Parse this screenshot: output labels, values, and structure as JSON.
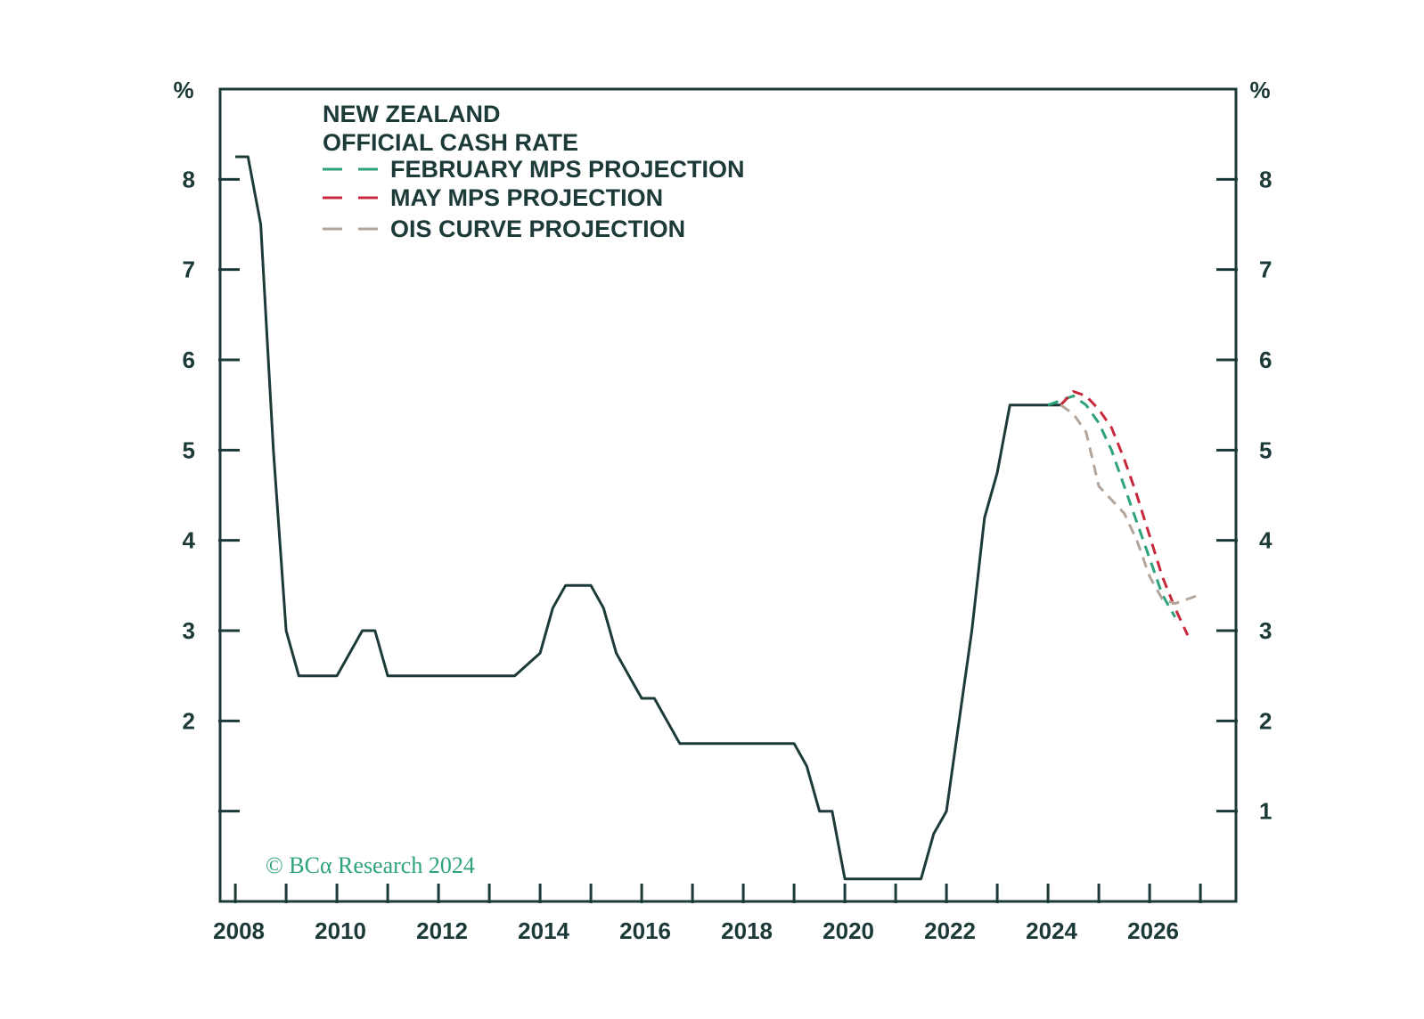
{
  "chart_data": {
    "type": "line",
    "title_lines": [
      "NEW ZEALAND",
      "OFFICIAL CASH RATE"
    ],
    "left_unit": "%",
    "right_unit": "%",
    "ylim": [
      0.0,
      9.0
    ],
    "xlim": [
      2007.7,
      2027.7
    ],
    "y_ticks": [
      1,
      2,
      3,
      4,
      5,
      6,
      7,
      8
    ],
    "y_tick_labels_left": [
      "2",
      "3",
      "4",
      "5",
      "6",
      "7",
      "8"
    ],
    "y_tick_labels_left_values": [
      2,
      3,
      4,
      5,
      6,
      7,
      8
    ],
    "y_tick_labels_right": [
      "1",
      "2",
      "3",
      "4",
      "5",
      "6",
      "7",
      "8"
    ],
    "y_tick_labels_right_values": [
      1,
      2,
      3,
      4,
      5,
      6,
      7,
      8
    ],
    "x_ticks": [
      2008,
      2009,
      2010,
      2011,
      2012,
      2013,
      2014,
      2015,
      2016,
      2017,
      2018,
      2019,
      2020,
      2021,
      2022,
      2023,
      2024,
      2025,
      2026,
      2027
    ],
    "x_tick_labels": [
      "2008",
      "2010",
      "2012",
      "2014",
      "2016",
      "2018",
      "2020",
      "2022",
      "2024",
      "2026"
    ],
    "x_tick_label_values": [
      2008,
      2010,
      2012,
      2014,
      2016,
      2018,
      2020,
      2022,
      2024,
      2026
    ],
    "series": [
      {
        "name": "OFFICIAL CASH RATE",
        "color": "#1c3a38",
        "dash": "solid",
        "points": [
          [
            2008.0,
            8.25
          ],
          [
            2008.25,
            8.25
          ],
          [
            2008.5,
            7.5
          ],
          [
            2008.75,
            5.0
          ],
          [
            2009.0,
            3.0
          ],
          [
            2009.25,
            2.5
          ],
          [
            2010.0,
            2.5
          ],
          [
            2010.5,
            3.0
          ],
          [
            2010.75,
            3.0
          ],
          [
            2011.0,
            2.5
          ],
          [
            2013.5,
            2.5
          ],
          [
            2014.0,
            2.75
          ],
          [
            2014.25,
            3.25
          ],
          [
            2014.5,
            3.5
          ],
          [
            2015.0,
            3.5
          ],
          [
            2015.25,
            3.25
          ],
          [
            2015.5,
            2.75
          ],
          [
            2015.75,
            2.5
          ],
          [
            2016.0,
            2.25
          ],
          [
            2016.25,
            2.25
          ],
          [
            2016.75,
            1.75
          ],
          [
            2018.0,
            1.75
          ],
          [
            2019.0,
            1.75
          ],
          [
            2019.25,
            1.5
          ],
          [
            2019.5,
            1.0
          ],
          [
            2019.75,
            1.0
          ],
          [
            2020.0,
            0.25
          ],
          [
            2021.5,
            0.25
          ],
          [
            2021.75,
            0.75
          ],
          [
            2022.0,
            1.0
          ],
          [
            2022.25,
            2.0
          ],
          [
            2022.5,
            3.0
          ],
          [
            2022.75,
            4.25
          ],
          [
            2023.0,
            4.75
          ],
          [
            2023.25,
            5.5
          ],
          [
            2024.25,
            5.5
          ]
        ]
      },
      {
        "name": "FEBRUARY MPS PROJECTION",
        "color": "#2ea27a",
        "dash": "dashed",
        "points": [
          [
            2024.0,
            5.5
          ],
          [
            2024.5,
            5.6
          ],
          [
            2024.75,
            5.5
          ],
          [
            2025.0,
            5.3
          ],
          [
            2025.25,
            5.0
          ],
          [
            2025.5,
            4.6
          ],
          [
            2025.75,
            4.2
          ],
          [
            2026.0,
            3.8
          ],
          [
            2026.25,
            3.4
          ],
          [
            2026.5,
            3.15
          ]
        ]
      },
      {
        "name": "MAY MPS PROJECTION",
        "color": "#c8283c",
        "dash": "dashed",
        "points": [
          [
            2024.25,
            5.5
          ],
          [
            2024.5,
            5.65
          ],
          [
            2024.75,
            5.6
          ],
          [
            2025.0,
            5.45
          ],
          [
            2025.25,
            5.25
          ],
          [
            2025.5,
            4.9
          ],
          [
            2025.75,
            4.5
          ],
          [
            2026.0,
            4.05
          ],
          [
            2026.25,
            3.6
          ],
          [
            2026.5,
            3.25
          ],
          [
            2026.75,
            2.95
          ]
        ]
      },
      {
        "name": "OIS CURVE PROJECTION",
        "color": "#b4a59a",
        "dash": "dashed",
        "points": [
          [
            2024.25,
            5.5
          ],
          [
            2024.5,
            5.4
          ],
          [
            2024.75,
            5.2
          ],
          [
            2025.0,
            4.6
          ],
          [
            2025.25,
            4.45
          ],
          [
            2025.5,
            4.3
          ],
          [
            2025.75,
            4.0
          ],
          [
            2026.0,
            3.6
          ],
          [
            2026.25,
            3.35
          ],
          [
            2026.5,
            3.3
          ],
          [
            2026.75,
            3.35
          ],
          [
            2027.0,
            3.4
          ]
        ]
      }
    ],
    "copyright": "© BCα Research 2024"
  }
}
